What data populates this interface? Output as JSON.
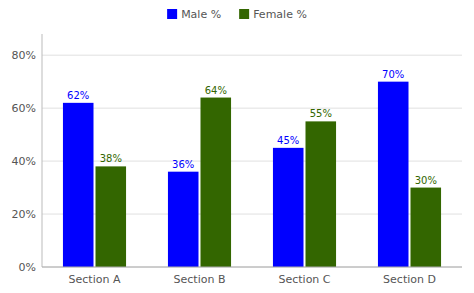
{
  "chart_data": {
    "type": "bar",
    "categories": [
      "Section A",
      "Section B",
      "Section C",
      "Section D"
    ],
    "series": [
      {
        "name": "Male %",
        "color": "#0000ff",
        "values": [
          0.62,
          0.36,
          0.45,
          0.7
        ],
        "value_labels": [
          "62%",
          "36%",
          "45%",
          "70%"
        ]
      },
      {
        "name": "Female %",
        "color": "#336600",
        "values": [
          0.38,
          0.64,
          0.55,
          0.3
        ],
        "value_labels": [
          "38%",
          "64%",
          "55%",
          "30%"
        ]
      }
    ],
    "ylim": [
      0,
      0.88
    ],
    "yticks": [
      {
        "value": 0.0,
        "label": "0%"
      },
      {
        "value": 0.2,
        "label": "20%"
      },
      {
        "value": 0.4,
        "label": "40%"
      },
      {
        "value": 0.6,
        "label": "60%"
      },
      {
        "value": 0.8,
        "label": "80%"
      }
    ],
    "grid": true,
    "legend": "top",
    "data_labels": true
  }
}
